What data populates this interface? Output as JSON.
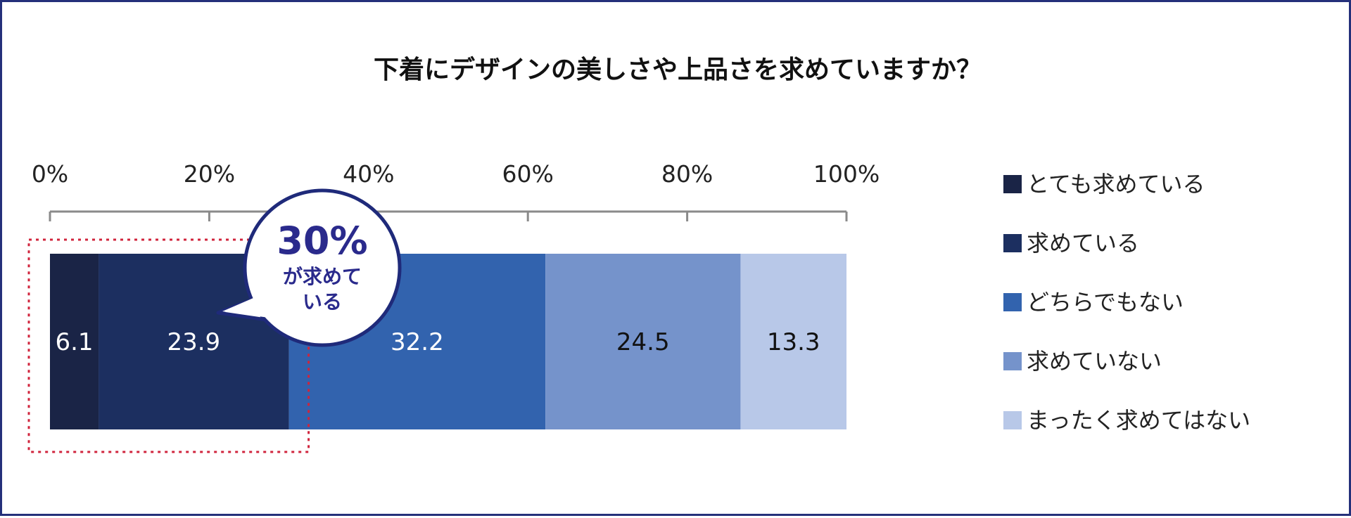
{
  "chart_data": {
    "type": "bar",
    "orientation": "horizontal",
    "stacked": true,
    "title": "下着にデザインの美しさや上品さを求めていますか？",
    "x_ticks": [
      "0%",
      "20%",
      "40%",
      "60%",
      "80%",
      "100%"
    ],
    "xlim": [
      0,
      100
    ],
    "categories": [
      ""
    ],
    "series": [
      {
        "name": "とても求めている",
        "values": [
          6.1
        ],
        "color": "#1a2446",
        "label_color": "#ffffff"
      },
      {
        "name": "求めている",
        "values": [
          23.9
        ],
        "color": "#1c2f60",
        "label_color": "#ffffff"
      },
      {
        "name": "どちらでもない",
        "values": [
          32.2
        ],
        "color": "#3263ae",
        "label_color": "#ffffff"
      },
      {
        "name": "求めていない",
        "values": [
          24.5
        ],
        "color": "#7593cb",
        "label_color": "#111111"
      },
      {
        "name": "まったく求めてはない",
        "values": [
          13.3
        ],
        "color": "#b8c8e8",
        "label_color": "#111111"
      }
    ],
    "legend_position": "right",
    "grid": false,
    "annotation": {
      "value_text": "30%",
      "line1": "が求めて",
      "line2": "いる",
      "highlight_series": [
        "とても求めている",
        "求めている"
      ],
      "highlight_style": "dotted-red",
      "highlight_color": "#d0243c",
      "bubble_stroke": "#1f2a7a"
    }
  }
}
